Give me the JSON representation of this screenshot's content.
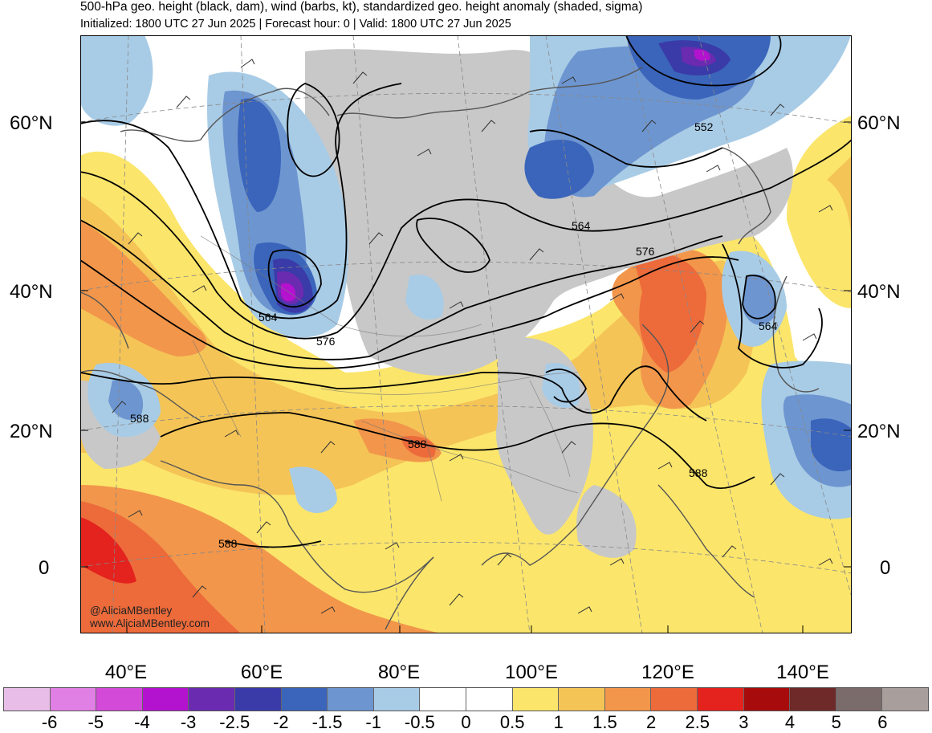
{
  "title": "500-hPa geo. height (black, dam), wind (barbs, kt), standardized geo. height anomaly (shaded, sigma)",
  "subtitle": "Initialized: 1800 UTC 27 Jun 2025 | Forecast hour: 0 | Valid: 1800 UTC 27 Jun 2025",
  "lat_labels": [
    "60°N",
    "40°N",
    "20°N",
    "0"
  ],
  "lon_labels": [
    "40°E",
    "60°E",
    "80°E",
    "100°E",
    "120°E",
    "140°E"
  ],
  "contour_labels": [
    "552",
    "564",
    "576",
    "564",
    "576",
    "564",
    "588",
    "588",
    "588",
    "588"
  ],
  "credit": {
    "line1": "@AliciaMBentley",
    "line2": "www.AliciaMBentley.com"
  },
  "colorbar": {
    "ticks": [
      "-6",
      "-5",
      "-4",
      "-3",
      "-2.5",
      "-2",
      "-1.5",
      "-1",
      "-0.5",
      "0",
      "0.5",
      "1",
      "1.5",
      "2",
      "2.5",
      "3",
      "4",
      "5",
      "6"
    ],
    "colors": [
      "#e8bde8",
      "#e080e4",
      "#d44ad8",
      "#b312cf",
      "#6a2bb0",
      "#3a3aa8",
      "#3a65bb",
      "#6d96d0",
      "#a8cbe6",
      "#ffffff",
      "#ffffff",
      "#fbe56a",
      "#f5c457",
      "#f1964a",
      "#ed6a3a",
      "#e4221e",
      "#a80b0b",
      "#6e2a28",
      "#7a6c6a",
      "#a89e9c"
    ]
  },
  "colors": {
    "land_gray": "#c8c8c8",
    "contour": "#000000",
    "coastline": "#555555"
  }
}
